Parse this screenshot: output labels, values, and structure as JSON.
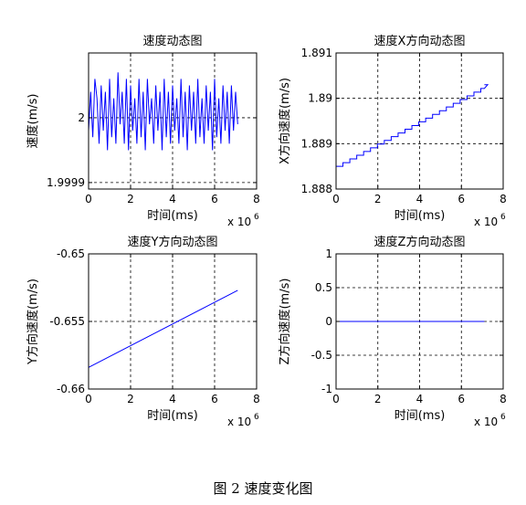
{
  "figure": {
    "caption": "图 2  速度变化图"
  },
  "chart_data": [
    {
      "type": "line",
      "title": "速度动态图",
      "xlabel": "时间(ms)",
      "ylabel": "速度(m/s)",
      "x_multiplier": "x 10",
      "x_multiplier_exp": "6",
      "xlim": [
        0,
        8
      ],
      "ylim": [
        1.99989,
        2.0001
      ],
      "xticks": [
        0,
        2,
        4,
        6,
        8
      ],
      "xtick_labels": [
        "0",
        "2",
        "4",
        "6",
        "8"
      ],
      "yticks": [
        1.9999,
        2
      ],
      "ytick_labels": [
        "1.9999",
        "2"
      ],
      "grid": true,
      "line_color": "#0000ff",
      "series": [
        {
          "x": [
            0,
            0.1,
            0.2,
            0.3,
            0.4,
            0.5,
            0.6,
            0.7,
            0.8,
            0.9,
            1.0,
            1.1,
            1.2,
            1.3,
            1.4,
            1.5,
            1.6,
            1.7,
            1.8,
            1.9,
            2.0,
            2.1,
            2.2,
            2.3,
            2.4,
            2.5,
            2.6,
            2.7,
            2.8,
            2.9,
            3.0,
            3.1,
            3.2,
            3.3,
            3.4,
            3.5,
            3.6,
            3.7,
            3.8,
            3.9,
            4.0,
            4.1,
            4.2,
            4.3,
            4.4,
            4.5,
            4.6,
            4.7,
            4.8,
            4.9,
            5.0,
            5.1,
            5.2,
            5.3,
            5.4,
            5.5,
            5.6,
            5.7,
            5.8,
            5.9,
            6.0,
            6.1,
            6.2,
            6.3,
            6.4,
            6.5,
            6.6,
            6.7,
            6.8,
            6.9,
            7.0,
            7.1
          ],
          "y": [
            1.99998,
            2.00004,
            1.99997,
            2.00006,
            2.00003,
            1.99996,
            2.00005,
            1.99998,
            2.00004,
            1.99995,
            2.00006,
            1.99997,
            2.00003,
            1.99996,
            2.00007,
            1.99999,
            2.00004,
            1.99996,
            2.00006,
            1.99995,
            2.00005,
            1.99998,
            2.00003,
            1.99996,
            2.00006,
            1.99997,
            2.00004,
            1.99995,
            2.00006,
            1.99999,
            2.00003,
            1.99996,
            2.00005,
            1.99998,
            2.00004,
            1.99995,
            2.00006,
            1.99997,
            2.00004,
            1.99996,
            2.00005,
            1.99998,
            2.00003,
            1.99996,
            2.00006,
            1.99997,
            2.00004,
            1.99995,
            2.00005,
            1.99998,
            2.00004,
            1.99996,
            2.00006,
            1.99997,
            2.00003,
            1.99996,
            2.00005,
            1.99998,
            2.00004,
            1.99995,
            2.00006,
            1.99997,
            2.00003,
            1.99996,
            2.00005,
            1.99998,
            2.00004,
            1.99996,
            2.00005,
            1.99998,
            2.00004,
            1.99999
          ]
        }
      ]
    },
    {
      "type": "line",
      "title": "速度X方向动态图",
      "xlabel": "时间(ms)",
      "ylabel": "X方向速度(m/s)",
      "x_multiplier": "x 10",
      "x_multiplier_exp": "6",
      "xlim": [
        0,
        8
      ],
      "ylim": [
        1.888,
        1.891
      ],
      "xticks": [
        0,
        2,
        4,
        6,
        8
      ],
      "xtick_labels": [
        "0",
        "2",
        "4",
        "6",
        "8"
      ],
      "yticks": [
        1.888,
        1.889,
        1.89,
        1.891
      ],
      "ytick_labels": [
        "1.888",
        "1.889",
        "1.89",
        "1.891"
      ],
      "grid": true,
      "line_color": "#0000ff",
      "series": [
        {
          "x": [
            0,
            7.1
          ],
          "y": [
            1.8885,
            1.8903
          ],
          "step": 0.33
        }
      ]
    },
    {
      "type": "line",
      "title": "速度Y方向动态图",
      "xlabel": "时间(ms)",
      "ylabel": "Y方向速度(m/s)",
      "x_multiplier": "x 10",
      "x_multiplier_exp": "6",
      "xlim": [
        0,
        8
      ],
      "ylim": [
        -0.66,
        -0.65
      ],
      "xticks": [
        0,
        2,
        4,
        6,
        8
      ],
      "xtick_labels": [
        "0",
        "2",
        "4",
        "6",
        "8"
      ],
      "yticks": [
        -0.66,
        -0.655,
        -0.65
      ],
      "ytick_labels": [
        "-0.66",
        "-0.655",
        "-0.65"
      ],
      "grid": true,
      "line_color": "#0000ff",
      "series": [
        {
          "x": [
            0,
            7.1
          ],
          "y": [
            -0.6584,
            -0.6527
          ]
        }
      ]
    },
    {
      "type": "line",
      "title": "速度Z方向动态图",
      "xlabel": "时间(ms)",
      "ylabel": "Z方向速度(m/s)",
      "x_multiplier": "x 10",
      "x_multiplier_exp": "6",
      "xlim": [
        0,
        8
      ],
      "ylim": [
        -1,
        1
      ],
      "xticks": [
        0,
        2,
        4,
        6,
        8
      ],
      "xtick_labels": [
        "0",
        "2",
        "4",
        "6",
        "8"
      ],
      "yticks": [
        -1,
        -0.5,
        0,
        0.5,
        1
      ],
      "ytick_labels": [
        "-1",
        "-0.5",
        "0",
        "0.5",
        "1"
      ],
      "grid": true,
      "line_color": "#0000ff",
      "series": [
        {
          "x": [
            0,
            7.1
          ],
          "y": [
            0,
            0
          ]
        }
      ]
    }
  ]
}
